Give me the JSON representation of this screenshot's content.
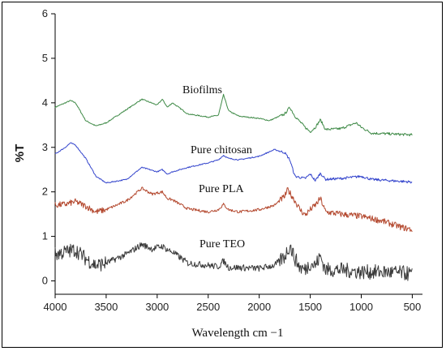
{
  "chart_data": {
    "type": "line",
    "xlabel": "Wavelength cm −1",
    "ylabel": "%T",
    "xlim": [
      4000,
      400
    ],
    "ylim": [
      -0.3,
      6
    ],
    "x_ticks": [
      4000,
      3500,
      3000,
      2500,
      2000,
      1500,
      1000,
      500
    ],
    "y_ticks": [
      0,
      1,
      2,
      3,
      4,
      5,
      6
    ],
    "grid": false,
    "legend": "none",
    "series": [
      {
        "name": "Biofilms",
        "color": "#3f8a47",
        "noise": 0.02,
        "x": [
          4000,
          3900,
          3850,
          3800,
          3700,
          3600,
          3500,
          3300,
          3150,
          3000,
          2950,
          2900,
          2850,
          2700,
          2500,
          2400,
          2350,
          2300,
          2200,
          2000,
          1900,
          1750,
          1700,
          1650,
          1550,
          1500,
          1450,
          1400,
          1350,
          1200,
          1050,
          1000,
          900,
          700,
          500
        ],
        "y": [
          3.9,
          4.0,
          4.05,
          4.0,
          3.6,
          3.48,
          3.55,
          3.85,
          4.08,
          3.95,
          4.08,
          3.9,
          4.0,
          3.75,
          3.68,
          3.72,
          4.18,
          3.82,
          3.7,
          3.65,
          3.6,
          3.75,
          3.9,
          3.7,
          3.45,
          3.35,
          3.45,
          3.62,
          3.4,
          3.42,
          3.55,
          3.45,
          3.32,
          3.3,
          3.28
        ]
      },
      {
        "name": "Pure chitosan",
        "color": "#3344cc",
        "noise": 0.02,
        "x": [
          4000,
          3900,
          3850,
          3800,
          3700,
          3600,
          3500,
          3300,
          3150,
          3000,
          2950,
          2900,
          2850,
          2700,
          2500,
          2400,
          2350,
          2300,
          2200,
          2000,
          1850,
          1750,
          1700,
          1650,
          1550,
          1500,
          1450,
          1400,
          1350,
          1200,
          1000,
          900,
          700,
          500
        ],
        "y": [
          2.85,
          3.0,
          3.1,
          3.05,
          2.75,
          2.35,
          2.2,
          2.28,
          2.55,
          2.45,
          2.5,
          2.4,
          2.45,
          2.55,
          2.65,
          2.72,
          2.82,
          2.75,
          2.72,
          2.8,
          2.95,
          2.88,
          2.72,
          2.35,
          2.3,
          2.4,
          2.25,
          2.42,
          2.28,
          2.3,
          2.35,
          2.28,
          2.25,
          2.22
        ]
      },
      {
        "name": "Pure PLA",
        "color": "#b3472d",
        "noise": 0.05,
        "x": [
          4000,
          3900,
          3800,
          3700,
          3600,
          3500,
          3300,
          3150,
          3050,
          2950,
          2900,
          2850,
          2700,
          2500,
          2400,
          2350,
          2300,
          2200,
          2000,
          1850,
          1750,
          1720,
          1650,
          1600,
          1550,
          1500,
          1450,
          1400,
          1350,
          1200,
          1000,
          800,
          600,
          500
        ],
        "y": [
          1.7,
          1.72,
          1.78,
          1.68,
          1.55,
          1.6,
          1.8,
          2.08,
          1.95,
          2.0,
          1.85,
          1.82,
          1.62,
          1.55,
          1.6,
          1.72,
          1.6,
          1.55,
          1.6,
          1.7,
          1.9,
          2.05,
          1.8,
          1.6,
          1.48,
          1.6,
          1.7,
          1.85,
          1.55,
          1.5,
          1.45,
          1.35,
          1.2,
          1.15
        ]
      },
      {
        "name": "Pure TEO",
        "color": "#3a3a3a",
        "noise": 0.12,
        "x": [
          4000,
          3900,
          3800,
          3700,
          3600,
          3500,
          3300,
          3150,
          3050,
          2950,
          2900,
          2850,
          2700,
          2500,
          2400,
          2350,
          2300,
          2200,
          2000,
          1850,
          1750,
          1700,
          1650,
          1600,
          1550,
          1500,
          1450,
          1400,
          1350,
          1200,
          1000,
          800,
          600,
          500
        ],
        "y": [
          0.6,
          0.65,
          0.7,
          0.5,
          0.35,
          0.4,
          0.6,
          0.82,
          0.72,
          0.78,
          0.7,
          0.65,
          0.4,
          0.35,
          0.32,
          0.45,
          0.3,
          0.3,
          0.28,
          0.35,
          0.55,
          0.8,
          0.5,
          0.3,
          0.25,
          0.4,
          0.35,
          0.55,
          0.25,
          0.25,
          0.2,
          0.2,
          0.18,
          0.15
        ]
      }
    ],
    "annotations": [
      "Biofilms",
      "Pure chitosan",
      "Pure PLA",
      "Pure TEO"
    ]
  }
}
